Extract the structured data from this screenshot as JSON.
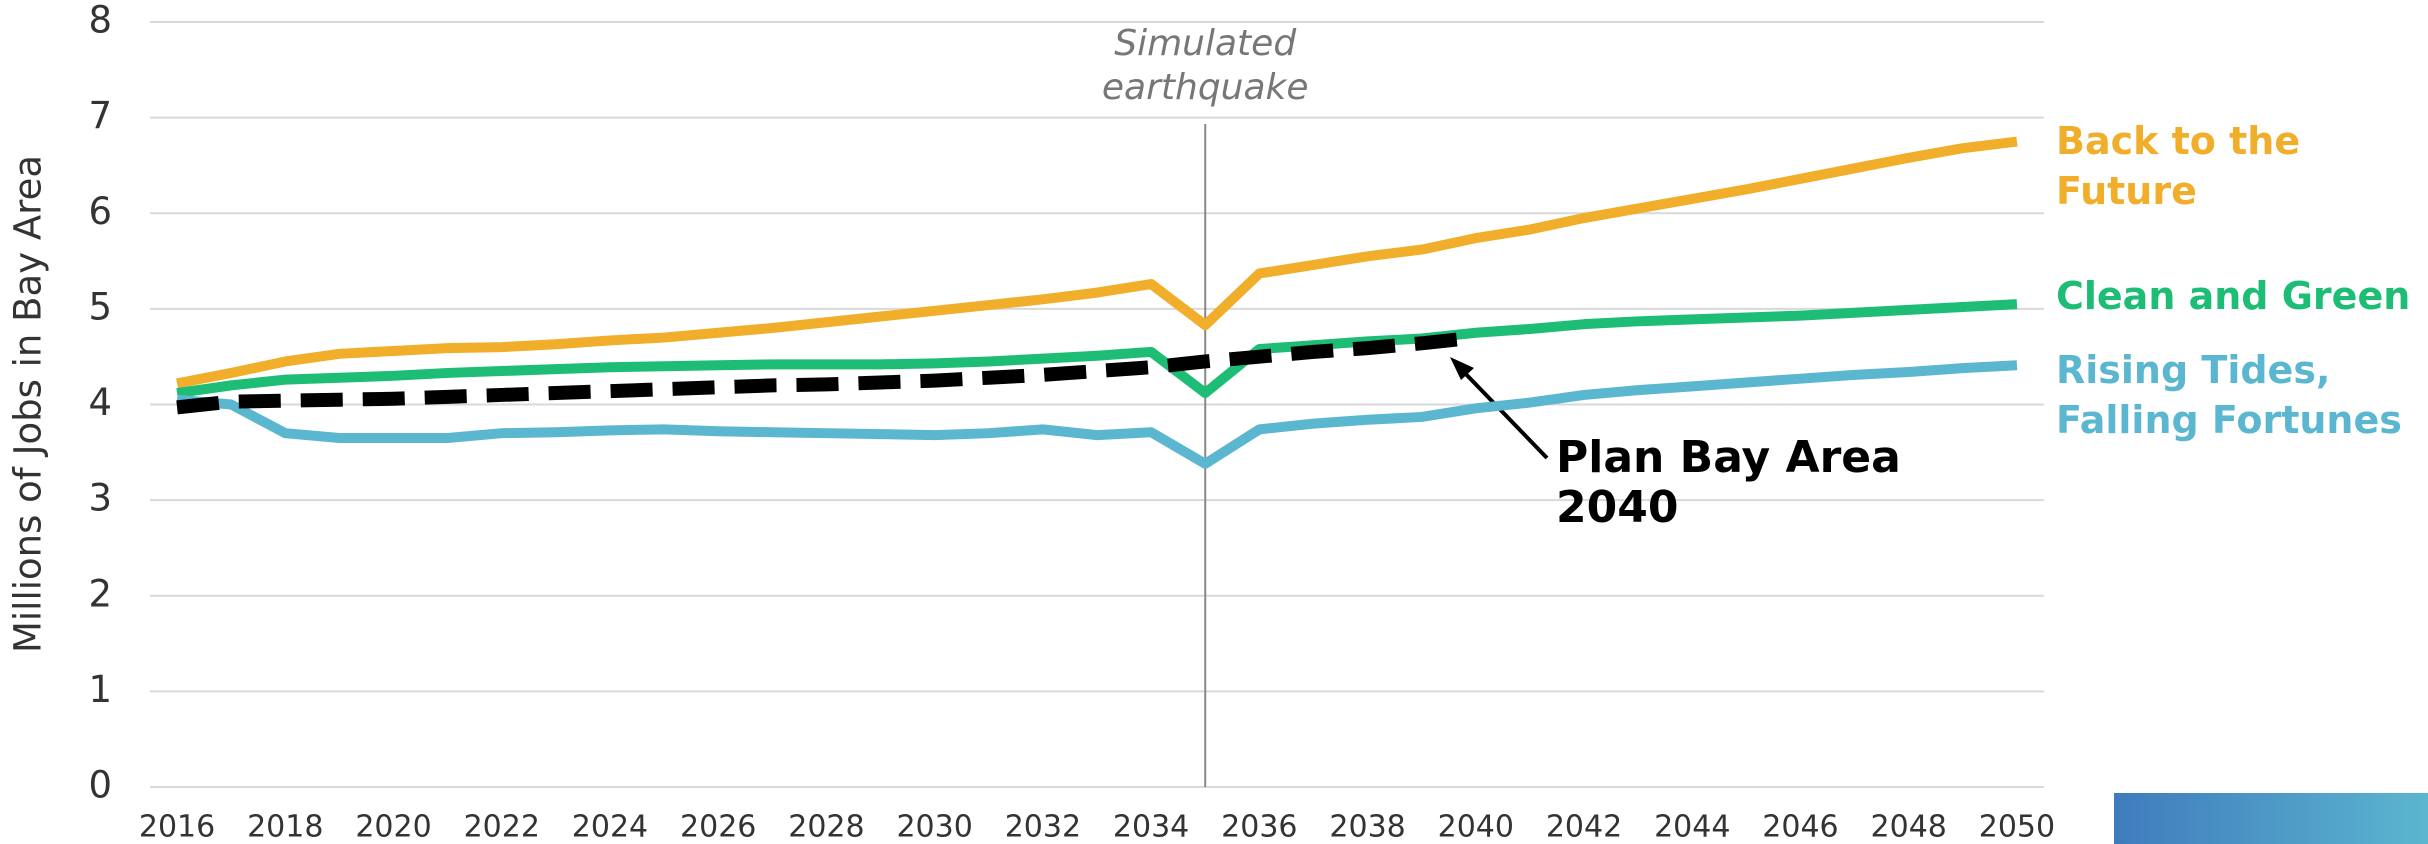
{
  "chart_data": {
    "type": "line",
    "y_label": "Millions of Jobs in Bay Area",
    "x": [
      2016,
      2017,
      2018,
      2019,
      2020,
      2021,
      2022,
      2023,
      2024,
      2025,
      2026,
      2027,
      2028,
      2029,
      2030,
      2031,
      2032,
      2033,
      2034,
      2035,
      2036,
      2037,
      2038,
      2039,
      2040,
      2041,
      2042,
      2043,
      2044,
      2045,
      2046,
      2047,
      2048,
      2049,
      2050
    ],
    "xlim": [
      2015.5,
      2050.5
    ],
    "xticks": [
      2016,
      2018,
      2020,
      2022,
      2024,
      2026,
      2028,
      2030,
      2032,
      2034,
      2036,
      2038,
      2040,
      2042,
      2044,
      2046,
      2048,
      2050
    ],
    "ylim": [
      0,
      8
    ],
    "yticks": [
      0,
      1,
      2,
      3,
      4,
      5,
      6,
      7,
      8
    ],
    "grid": true,
    "series": [
      {
        "name": "Back to the Future",
        "color": "#f0ae2a",
        "values": [
          4.22,
          4.33,
          4.45,
          4.53,
          4.56,
          4.59,
          4.6,
          4.63,
          4.67,
          4.7,
          4.75,
          4.8,
          4.86,
          4.92,
          4.98,
          5.04,
          5.1,
          5.17,
          5.26,
          4.83,
          5.37,
          5.46,
          5.55,
          5.62,
          5.74,
          5.83,
          5.95,
          6.05,
          6.15,
          6.25,
          6.36,
          6.47,
          6.58,
          6.68,
          6.75
        ]
      },
      {
        "name": "Clean and Green",
        "color": "#1dbd75",
        "values": [
          4.12,
          4.2,
          4.26,
          4.28,
          4.3,
          4.33,
          4.35,
          4.37,
          4.39,
          4.4,
          4.41,
          4.42,
          4.42,
          4.42,
          4.43,
          4.45,
          4.48,
          4.51,
          4.55,
          4.12,
          4.58,
          4.62,
          4.66,
          4.69,
          4.75,
          4.79,
          4.84,
          4.87,
          4.89,
          4.91,
          4.93,
          4.96,
          4.99,
          5.02,
          5.05
        ]
      },
      {
        "name": "Rising Tides, Falling Fortunes",
        "color": "#5bb6cf",
        "values": [
          4.05,
          4.0,
          3.7,
          3.65,
          3.65,
          3.65,
          3.7,
          3.71,
          3.73,
          3.74,
          3.72,
          3.71,
          3.7,
          3.69,
          3.68,
          3.7,
          3.74,
          3.68,
          3.71,
          3.38,
          3.74,
          3.8,
          3.84,
          3.87,
          3.96,
          4.02,
          4.1,
          4.15,
          4.19,
          4.23,
          4.27,
          4.31,
          4.34,
          4.38,
          4.41
        ]
      },
      {
        "name": "Plan Bay Area 2040",
        "color": "#000000",
        "dashed": true,
        "values": [
          3.97,
          4.03,
          4.04,
          4.05,
          4.06,
          4.08,
          4.1,
          4.12,
          4.14,
          4.16,
          4.18,
          4.2,
          4.21,
          4.23,
          4.25,
          4.28,
          4.31,
          4.35,
          4.39,
          4.45,
          4.5,
          4.55,
          4.59,
          4.64,
          4.7,
          null,
          null,
          null,
          null,
          null,
          null,
          null,
          null,
          null,
          null
        ]
      }
    ],
    "annotations": [
      {
        "text": "Simulated earthquake",
        "x": 2035
      }
    ]
  }
}
